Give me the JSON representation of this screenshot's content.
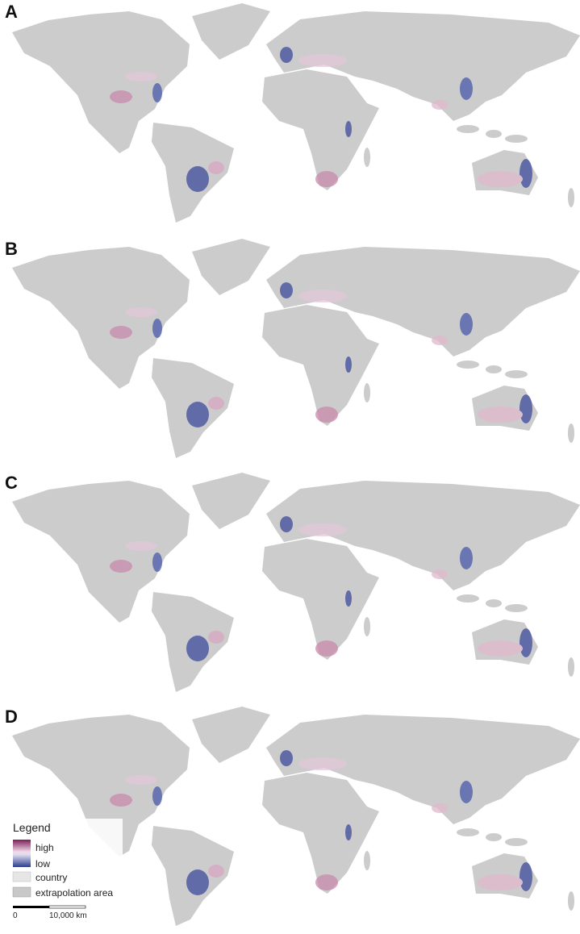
{
  "panels": [
    {
      "label": "A"
    },
    {
      "label": "B"
    },
    {
      "label": "C"
    },
    {
      "label": "D"
    }
  ],
  "legend": {
    "title": "Legend",
    "items": [
      "high",
      "low",
      "country",
      "extrapolation area"
    ]
  },
  "scale_bar": {
    "labels": [
      "0",
      "10,000 km"
    ]
  }
}
